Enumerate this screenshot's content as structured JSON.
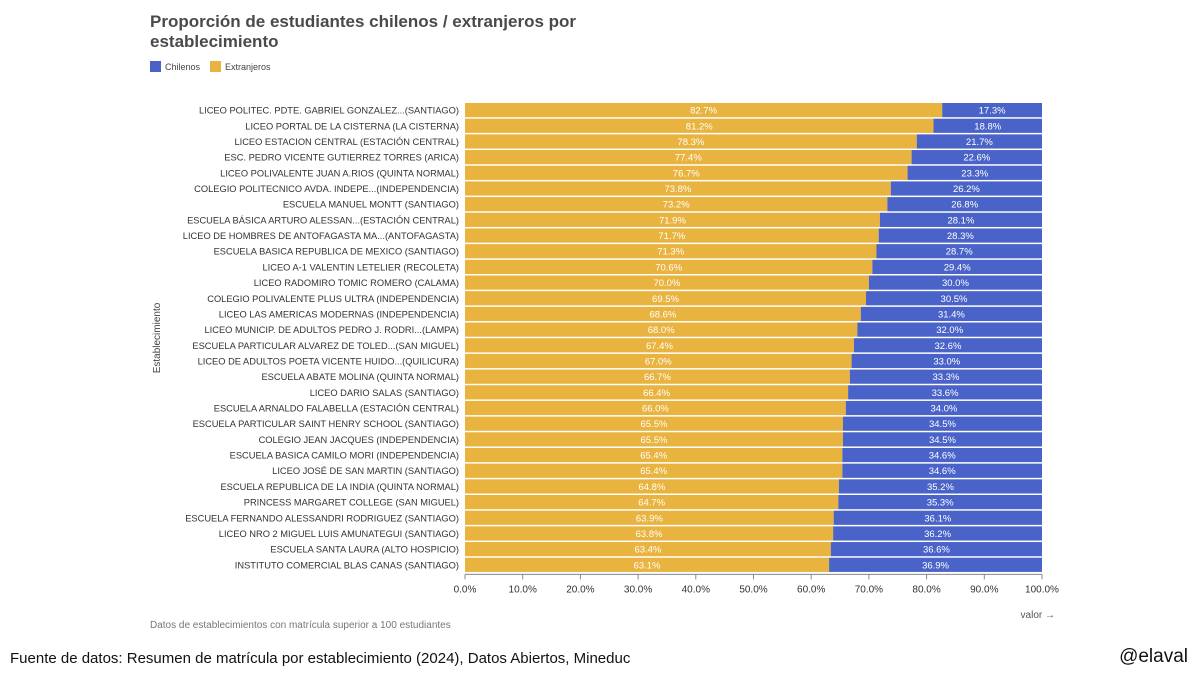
{
  "title": "Proporción de estudiantes chilenos / extranjeros por establecimiento",
  "legend": [
    {
      "label": "Chilenos",
      "color": "#4a63c8"
    },
    {
      "label": "Extranjeros",
      "color": "#e9b33f"
    }
  ],
  "note": "Datos de establecimientos con matrícula superior a 100 estudiantes",
  "source": "Fuente de datos: Resumen de matrícula por establecimiento (2024), Datos Abiertos, Mineduc",
  "handle": "@elaval",
  "chart_data": {
    "type": "bar",
    "orientation": "horizontal-stacked",
    "ylabel": "Establecimiento",
    "xlabel": "valor →",
    "xlim": [
      0,
      100
    ],
    "x_ticks": [
      "0.0%",
      "10.0%",
      "20.0%",
      "30.0%",
      "40.0%",
      "50.0%",
      "60.0%",
      "70.0%",
      "80.0%",
      "90.0%",
      "100.0%"
    ],
    "categories": [
      "LICEO POLITEC. PDTE. GABRIEL GONZALEZ...(SANTIAGO)",
      "LICEO PORTAL DE LA CISTERNA (LA CISTERNA)",
      "LICEO ESTACION CENTRAL (ESTACIÓN CENTRAL)",
      "ESC. PEDRO VICENTE GUTIERREZ TORRES (ARICA)",
      "LICEO POLIVALENTE JUAN A.RIOS (QUINTA NORMAL)",
      "COLEGIO POLITECNICO AVDA. INDEPE...(INDEPENDENCIA)",
      "ESCUELA MANUEL MONTT (SANTIAGO)",
      "ESCUELA BÁSICA ARTURO ALESSAN...(ESTACIÓN CENTRAL)",
      "LICEO DE HOMBRES DE ANTOFAGASTA MA...(ANTOFAGASTA)",
      "ESCUELA BASICA REPUBLICA DE MEXICO (SANTIAGO)",
      "LICEO A-1 VALENTIN LETELIER (RECOLETA)",
      "LICEO RADOMIRO TOMIC ROMERO (CALAMA)",
      "COLEGIO POLIVALENTE PLUS ULTRA (INDEPENDENCIA)",
      "LICEO LAS AMERICAS MODERNAS (INDEPENDENCIA)",
      "LICEO MUNICIP. DE ADULTOS PEDRO J. RODRI...(LAMPA)",
      "ESCUELA PARTICULAR ALVAREZ DE TOLED...(SAN MIGUEL)",
      "LICEO DE ADULTOS POETA VICENTE HUIDO...(QUILICURA)",
      "ESCUELA ABATE MOLINA (QUINTA NORMAL)",
      "LICEO DARIO SALAS (SANTIAGO)",
      "ESCUELA ARNALDO FALABELLA (ESTACIÓN CENTRAL)",
      "ESCUELA PARTICULAR SAINT HENRY SCHOOL (SANTIAGO)",
      "COLEGIO JEAN JACQUES (INDEPENDENCIA)",
      "ESCUELA BASICA CAMILO MORI (INDEPENDENCIA)",
      "LICEO JOSÉ DE SAN MARTIN (SANTIAGO)",
      "ESCUELA REPUBLICA DE LA INDIA (QUINTA NORMAL)",
      "PRINCESS MARGARET COLLEGE (SAN MIGUEL)",
      "ESCUELA FERNANDO ALESSANDRI RODRIGUEZ (SANTIAGO)",
      "LICEO NRO 2 MIGUEL LUIS AMUNATEGUI (SANTIAGO)",
      "ESCUELA SANTA LAURA (ALTO HOSPICIO)",
      "INSTITUTO COMERCIAL BLAS CANAS (SANTIAGO)"
    ],
    "series": [
      {
        "name": "Extranjeros",
        "color": "#e9b33f",
        "values": [
          82.7,
          81.2,
          78.3,
          77.4,
          76.7,
          73.8,
          73.2,
          71.9,
          71.7,
          71.3,
          70.6,
          70.0,
          69.5,
          68.6,
          68.0,
          67.4,
          67.0,
          66.7,
          66.4,
          66.0,
          65.5,
          65.5,
          65.4,
          65.4,
          64.8,
          64.7,
          63.9,
          63.8,
          63.4,
          63.1
        ],
        "labels": [
          "82.7%",
          "81.2%",
          "78.3%",
          "77.4%",
          "76.7%",
          "73.8%",
          "73.2%",
          "71.9%",
          "71.7%",
          "71.3%",
          "70.6%",
          "70.0%",
          "69.5%",
          "68.6%",
          "68.0%",
          "67.4%",
          "67.0%",
          "66.7%",
          "66.4%",
          "66.0%",
          "65.5%",
          "65.5%",
          "65.4%",
          "65.4%",
          "64.8%",
          "64.7%",
          "63.9%",
          "63.8%",
          "63.4%",
          "63.1%"
        ]
      },
      {
        "name": "Chilenos",
        "color": "#4a63c8",
        "values": [
          17.3,
          18.8,
          21.7,
          22.6,
          23.3,
          26.2,
          26.8,
          28.1,
          28.3,
          28.7,
          29.4,
          30.0,
          30.5,
          31.4,
          32.0,
          32.6,
          33.0,
          33.3,
          33.6,
          34.0,
          34.5,
          34.5,
          34.6,
          34.6,
          35.2,
          35.3,
          36.1,
          36.2,
          36.6,
          36.9
        ],
        "labels": [
          "17.3%",
          "18.8%",
          "21.7%",
          "22.6%",
          "23.3%",
          "26.2%",
          "26.8%",
          "28.1%",
          "28.3%",
          "28.7%",
          "29.4%",
          "30.0%",
          "30.5%",
          "31.4%",
          "32.0%",
          "32.6%",
          "33.0%",
          "33.3%",
          "33.6%",
          "34.0%",
          "34.5%",
          "34.5%",
          "34.6%",
          "34.6%",
          "35.2%",
          "35.3%",
          "36.1%",
          "36.2%",
          "36.6%",
          "36.9%"
        ]
      }
    ]
  }
}
